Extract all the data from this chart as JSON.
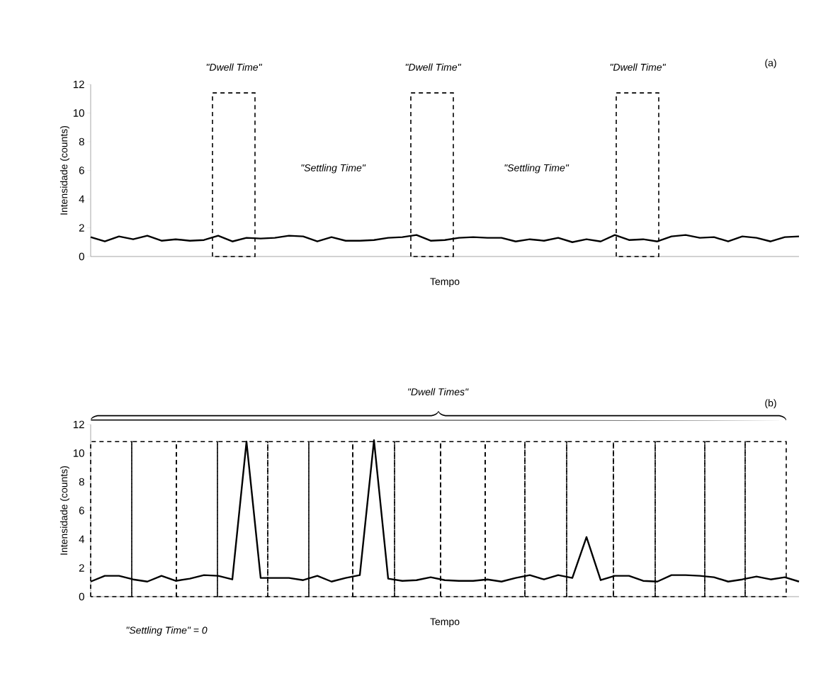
{
  "chart_data": [
    {
      "type": "line",
      "xlabel": "Tempo",
      "ylabel": "Intensidade (counts)",
      "color": "#000000",
      "categories": [
        null,
        null,
        null,
        null,
        null,
        null,
        null,
        null,
        null,
        null,
        null,
        null,
        null,
        null,
        null,
        null,
        null,
        null,
        null,
        null,
        null,
        null,
        null,
        null,
        null,
        null,
        null,
        null,
        null,
        null,
        null,
        null,
        null,
        null,
        null,
        null,
        null,
        null,
        null,
        null,
        null,
        null,
        null,
        null,
        null,
        null,
        null,
        null,
        null,
        null,
        null
      ],
      "values": [
        1.35,
        1.05,
        1.4,
        1.2,
        1.45,
        1.1,
        1.2,
        1.1,
        1.15,
        1.45,
        1.05,
        1.3,
        1.25,
        1.3,
        1.45,
        1.4,
        1.05,
        1.35,
        1.1,
        1.1,
        1.15,
        1.3,
        1.35,
        1.5,
        1.1,
        1.15,
        1.3,
        1.35,
        1.3,
        1.3,
        1.05,
        1.2,
        1.1,
        1.3,
        1.0,
        1.2,
        1.05,
        1.5,
        1.15,
        1.2,
        1.05,
        1.4,
        1.5,
        1.3,
        1.35,
        1.05,
        1.4,
        1.3,
        1.05,
        1.35,
        1.4
      ],
      "ylim": [
        0,
        12
      ],
      "yticks": [
        0,
        2,
        4,
        6,
        8,
        10,
        12
      ],
      "tick_labels": "y",
      "annotations": [
        "(a)",
        "\"Dwell Time\"",
        "\"Dwell Time\"",
        "\"Dwell Time\"",
        "\"Settling Time\"",
        "\"Settling Time\""
      ]
    },
    {
      "type": "line",
      "xlabel": "Tempo",
      "ylabel": "Intensidade (counts)",
      "color": "#000000",
      "categories": [
        null,
        null,
        null,
        null,
        null,
        null,
        null,
        null,
        null,
        null,
        null,
        null,
        null,
        null,
        null,
        null,
        null,
        null,
        null,
        null,
        null,
        null,
        null,
        null,
        null,
        null,
        null,
        null,
        null,
        null,
        null,
        null,
        null,
        null,
        null,
        null,
        null,
        null,
        null,
        null,
        null,
        null,
        null,
        null,
        null,
        null,
        null,
        null,
        null,
        null,
        null
      ],
      "values": [
        1.05,
        1.45,
        1.45,
        1.2,
        1.05,
        1.45,
        1.1,
        1.25,
        1.5,
        1.45,
        1.2,
        10.8,
        1.3,
        1.3,
        1.3,
        1.15,
        1.45,
        1.05,
        1.3,
        1.5,
        10.9,
        1.25,
        1.1,
        1.15,
        1.35,
        1.15,
        1.1,
        1.1,
        1.2,
        1.05,
        1.3,
        1.5,
        1.2,
        1.5,
        1.3,
        4.15,
        1.15,
        1.45,
        1.45,
        1.1,
        1.05,
        1.5,
        1.5,
        1.45,
        1.35,
        1.05,
        1.2,
        1.4,
        1.2,
        1.35,
        1.05
      ],
      "ylim": [
        0,
        12
      ],
      "yticks": [
        0,
        2,
        4,
        6,
        8,
        10,
        12
      ],
      "tick_labels": "y",
      "annotations": [
        "(b)",
        "\"Dwell Times\"",
        "\"Settling Time\" = 0"
      ]
    }
  ]
}
